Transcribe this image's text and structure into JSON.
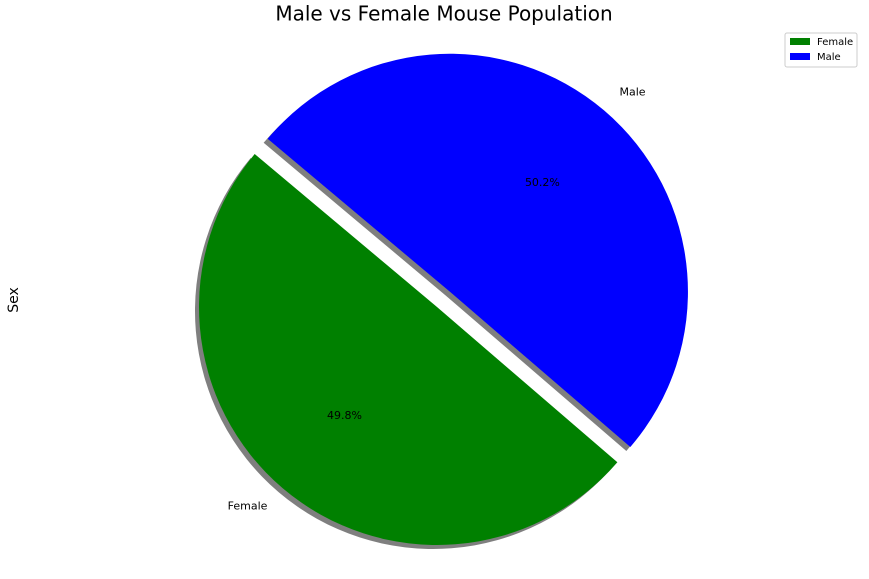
{
  "chart_data": {
    "type": "pie",
    "title": "Male vs Female Mouse Population",
    "ylabel": "Sex",
    "categories": [
      "Female",
      "Male"
    ],
    "values": [
      49.8,
      50.2
    ],
    "value_labels": [
      "49.8%",
      "50.2%"
    ],
    "colors": [
      "green",
      "blue"
    ],
    "legend": "upper right",
    "shadow": true
  }
}
